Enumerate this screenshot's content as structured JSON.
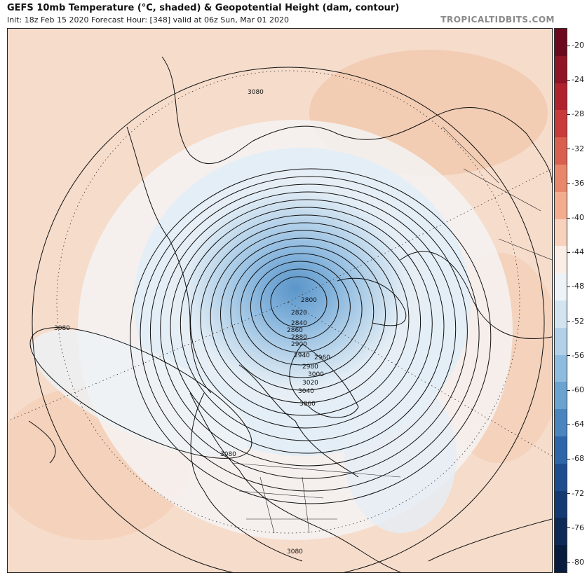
{
  "header": {
    "title": "GEFS 10mb Temperature (°C, shaded) & Geopotential Height (dam, contour)",
    "subtitle": "Init: 18z Feb 15 2020   Forecast Hour: [348]   valid at 06z Sun, Mar 01 2020",
    "watermark": "TROPICALTIDBITS.COM"
  },
  "colorbar": {
    "ticks": [
      "-20",
      "-24",
      "-28",
      "-32",
      "-36",
      "-40",
      "-44",
      "-48",
      "-52",
      "-56",
      "-60",
      "-64",
      "-68",
      "-72",
      "-76",
      "-80"
    ],
    "colors": [
      "#6b0a1e",
      "#8e1426",
      "#b0232e",
      "#c83b3a",
      "#d9604f",
      "#e88769",
      "#f3ad8e",
      "#f9d2bd",
      "#fbeee6",
      "#eef3f8",
      "#d3e4f1",
      "#b2d1e9",
      "#8ebcdf",
      "#6aa2d0",
      "#4a85bf",
      "#2e66a9",
      "#1d4d8f",
      "#143a73",
      "#0d2a57",
      "#081c3e"
    ]
  },
  "map": {
    "background_color": "#f6dccb",
    "vortex_colors": [
      "#fae4d6",
      "#f2f2f2",
      "#e1ecf5",
      "#c6dced",
      "#a3c7e5",
      "#7fb0da",
      "#5b95c9"
    ],
    "contour_labels": [
      {
        "text": "3080",
        "pos": "upper-left"
      },
      {
        "text": "3080",
        "pos": "left"
      },
      {
        "text": "3080",
        "pos": "lower-mid"
      },
      {
        "text": "3080",
        "pos": "bottom"
      },
      {
        "text": "2800",
        "pos": "core"
      },
      {
        "text": "2820",
        "pos": "c2"
      },
      {
        "text": "2840",
        "pos": "c3"
      },
      {
        "text": "2860",
        "pos": "c4"
      },
      {
        "text": "2880",
        "pos": "c5"
      },
      {
        "text": "2900",
        "pos": "c6"
      },
      {
        "text": "2940",
        "pos": "c7"
      },
      {
        "text": "2960",
        "pos": "c8"
      },
      {
        "text": "2980",
        "pos": "c9"
      },
      {
        "text": "3000",
        "pos": "c10"
      },
      {
        "text": "3020",
        "pos": "c11"
      },
      {
        "text": "3040",
        "pos": "c12"
      },
      {
        "text": "3060",
        "pos": "c13"
      }
    ]
  }
}
